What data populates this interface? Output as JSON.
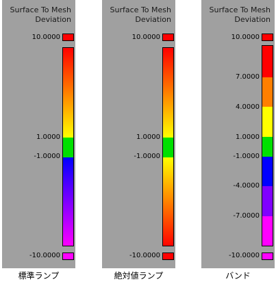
{
  "panels": [
    {
      "title": "Surface To Mesh\nDeviation",
      "max_label": "10.0000",
      "min_label": "-10.0000",
      "max_color": "#ff0000",
      "min_color": "#ff00ff",
      "caption": "標準ランプ",
      "type": "standard-ramp",
      "ticks": [
        {
          "label": "1.0000"
        },
        {
          "label": "-1.0000"
        }
      ]
    },
    {
      "title": "Surface To Mesh\nDeviation",
      "max_label": "10.0000",
      "min_label": "-10.0000",
      "max_color": "#ff0000",
      "min_color": "#ff0000",
      "caption": "絶対値ランプ",
      "type": "absolute-ramp",
      "ticks": [
        {
          "label": "1.0000"
        },
        {
          "label": "-1.0000"
        }
      ]
    },
    {
      "title": "Surface To Mesh\nDeviation",
      "max_label": "10.0000",
      "min_label": "-10.0000",
      "max_color": "#ff0000",
      "min_color": "#ff00ff",
      "caption": "バンド",
      "type": "band",
      "ticks": [
        {
          "label": "7.0000"
        },
        {
          "label": "4.0000"
        },
        {
          "label": "1.0000"
        },
        {
          "label": "-1.0000"
        },
        {
          "label": "-4.0000"
        },
        {
          "label": "-7.0000"
        }
      ],
      "bands": [
        "#ff0000",
        "#ff7f00",
        "#ffff00",
        "#00e000",
        "#0000ff",
        "#8000ff",
        "#ff00ff"
      ]
    }
  ]
}
